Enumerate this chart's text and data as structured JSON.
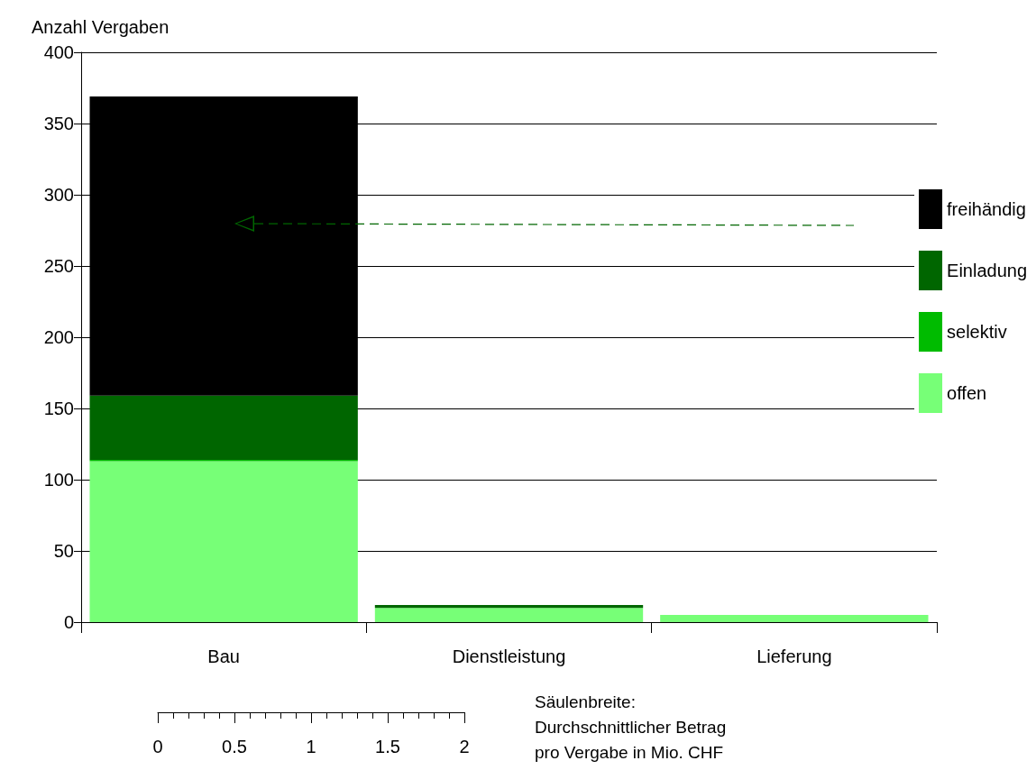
{
  "chart_data": {
    "type": "bar",
    "stacked": true,
    "ylabel": "Anzahl Vergaben",
    "categories": [
      "Bau",
      "Dienstleistung",
      "Lieferung"
    ],
    "series": [
      {
        "name": "offen",
        "color": "#77ff77",
        "values": [
          113,
          10,
          5
        ]
      },
      {
        "name": "selektiv",
        "color": "#00bb00",
        "values": [
          1,
          0,
          0
        ]
      },
      {
        "name": "Einladung",
        "color": "#006600",
        "values": [
          45,
          2,
          0
        ]
      },
      {
        "name": "freihändig",
        "color": "#000000",
        "values": [
          210,
          0,
          0
        ]
      }
    ],
    "ylim": [
      0,
      400
    ],
    "yticks": [
      0,
      50,
      100,
      150,
      200,
      250,
      300,
      350,
      400
    ],
    "grid": "y",
    "legend": "right",
    "x2lim": [
      0,
      2
    ],
    "x2ticks": [
      0,
      0.5,
      1,
      1.5,
      2
    ],
    "x2label": "Säulenbreite:\nDurchschnittlicher Betrag\npro Vergabe in Mio. CHF"
  }
}
